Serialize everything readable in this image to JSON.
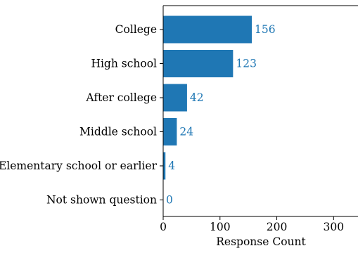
{
  "chart_data": {
    "type": "bar",
    "orientation": "horizontal",
    "categories": [
      "College",
      "High school",
      "After college",
      "Middle school",
      "Elementary school or earlier",
      "Not shown question"
    ],
    "values": [
      156,
      123,
      42,
      24,
      4,
      0
    ],
    "data_labels": [
      "156",
      "123",
      "42",
      "24",
      "4",
      "0"
    ],
    "xlabel": "Response Count",
    "ylabel": "",
    "title": "",
    "xlim": [
      0,
      340
    ],
    "xticks": [
      0,
      100,
      200,
      300
    ],
    "xtick_labels": [
      "0",
      "100",
      "200",
      "300"
    ],
    "grid": false,
    "legend": "none",
    "bar_color": "#1f77b4",
    "label_color": "#1f77b4",
    "axis_color": "#000000"
  }
}
